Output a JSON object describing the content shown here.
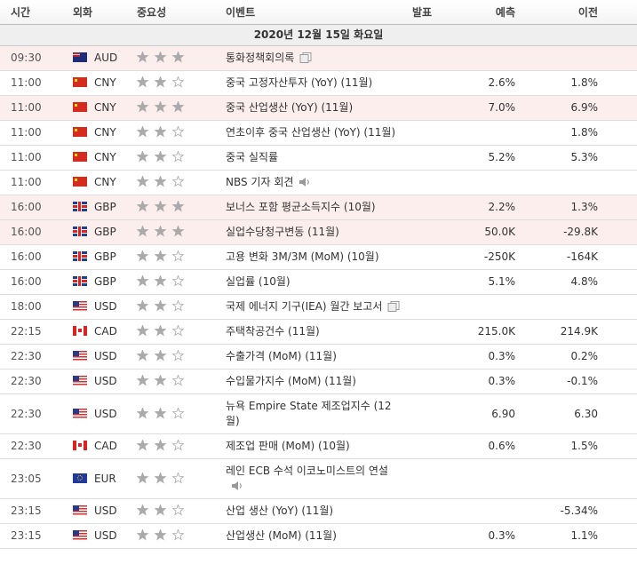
{
  "table": {
    "headers": [
      "시간",
      "외화",
      "중요성",
      "이벤트",
      "발표",
      "예측",
      "이전"
    ],
    "date": "2020년 12월 15일 화요일",
    "rows": [
      {
        "time": "09:30",
        "currency": "AUD",
        "importance": 3,
        "event": "통화정책회의록"
      },
      {
        "time": "11:00",
        "currency": "CNY",
        "importance": 2,
        "event": "중국 고정자산투자 (YoY) (11월)",
        "forecast": "2.6%",
        "previous": "1.8%"
      },
      {
        "time": "11:00",
        "currency": "CNY",
        "importance": 3,
        "event": "중국 산업생산 (YoY) (11월)",
        "forecast": "7.0%",
        "previous": "6.9%"
      },
      {
        "time": "11:00",
        "currency": "CNY",
        "importance": 2,
        "event": "연초이후 중국 산업생산 (YoY) (11월)",
        "previous": "1.8%"
      },
      {
        "time": "11:00",
        "currency": "CNY",
        "importance": 2,
        "event": "중국 실직률",
        "forecast": "5.2%",
        "previous": "5.3%"
      },
      {
        "time": "11:00",
        "currency": "CNY",
        "importance": 2,
        "event": "NBS 기자 회견"
      },
      {
        "time": "16:00",
        "currency": "GBP",
        "importance": 3,
        "event": "보너스 포함 평균소득지수 (10월)",
        "forecast": "2.2%",
        "previous": "1.3%"
      },
      {
        "time": "16:00",
        "currency": "GBP",
        "importance": 3,
        "event": "실업수당청구변동 (11월)",
        "forecast": "50.0K",
        "previous": "-29.8K"
      },
      {
        "time": "16:00",
        "currency": "GBP",
        "importance": 2,
        "event": "고용 변화 3M/3M (MoM) (10월)",
        "forecast": "-250K",
        "previous": "-164K"
      },
      {
        "time": "16:00",
        "currency": "GBP",
        "importance": 2,
        "event": "실업률 (10월)",
        "forecast": "5.1%",
        "previous": "4.8%"
      },
      {
        "time": "18:00",
        "currency": "USD",
        "importance": 2,
        "event": "국제 에너지 기구(IEA) 월간 보고서"
      },
      {
        "time": "22:15",
        "currency": "CAD",
        "importance": 2,
        "event": "주택착공건수 (11월)",
        "forecast": "215.0K",
        "previous": "214.9K"
      },
      {
        "time": "22:30",
        "currency": "USD",
        "importance": 2,
        "event": "수출가격 (MoM) (11월)",
        "forecast": "0.3%",
        "previous": "0.2%"
      },
      {
        "time": "22:30",
        "currency": "USD",
        "importance": 2,
        "event": "수입물가지수 (MoM) (11월)",
        "forecast": "0.3%",
        "previous": "-0.1%"
      },
      {
        "time": "22:30",
        "currency": "USD",
        "importance": 2,
        "event": "뉴욕 Empire State 제조업지수 (12월)",
        "forecast": "6.90",
        "previous": "6.30"
      },
      {
        "time": "22:30",
        "currency": "CAD",
        "importance": 2,
        "event": "제조업 판매 (MoM) (10월)",
        "forecast": "0.6%",
        "previous": "1.5%"
      },
      {
        "time": "23:05",
        "currency": "EUR",
        "importance": 2,
        "event": "레인 ECB 수석 이코노미스트의 연설"
      },
      {
        "time": "23:15",
        "currency": "USD",
        "importance": 2,
        "event": "산업 생산 (YoY) (11월)",
        "previous": "-5.34%"
      },
      {
        "time": "23:15",
        "currency": "USD",
        "importance": 2,
        "event": "산업생산 (MoM) (11월)",
        "forecast": "0.3%",
        "previous": "1.1%"
      }
    ]
  }
}
